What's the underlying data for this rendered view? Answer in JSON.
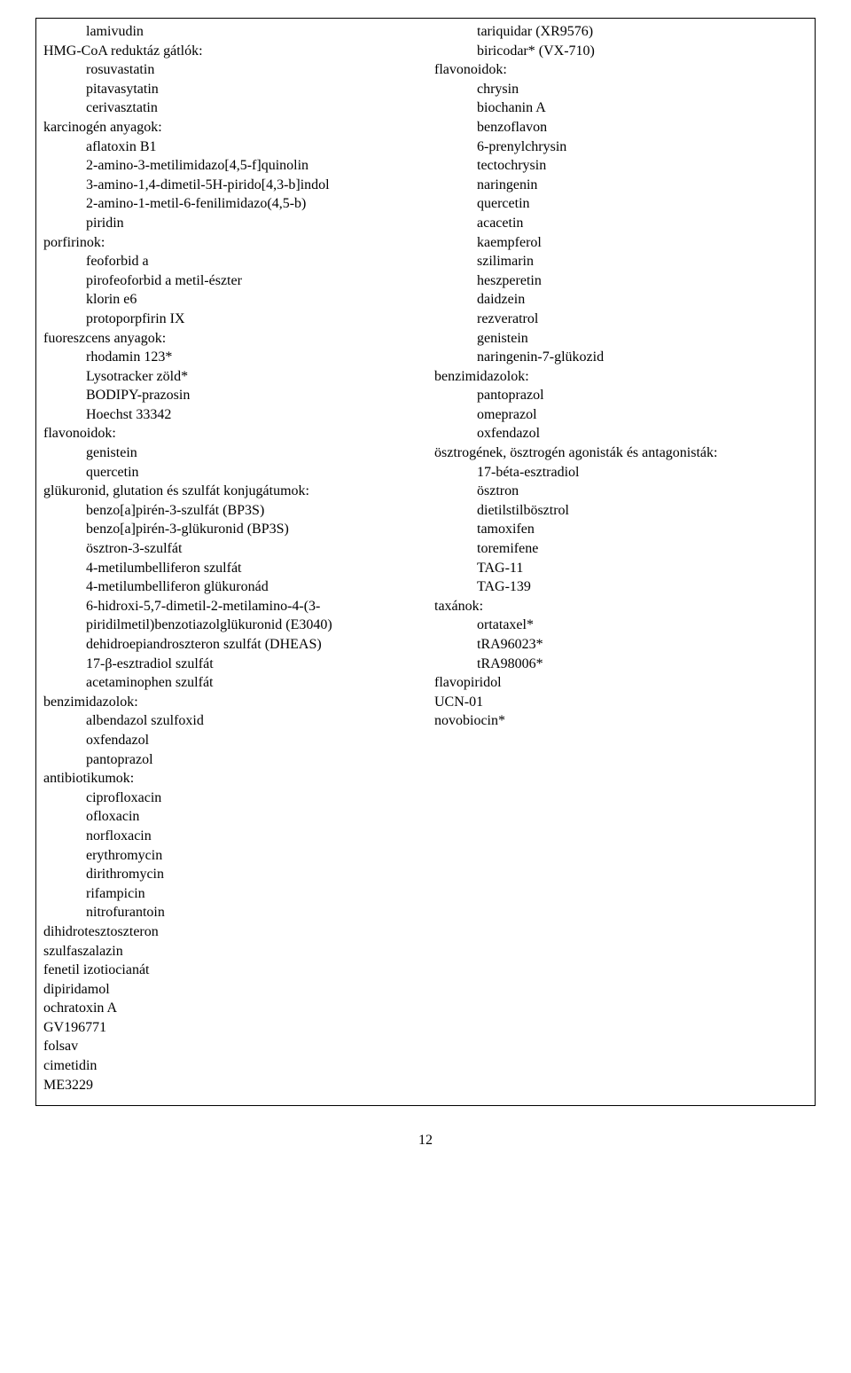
{
  "left": [
    {
      "text": "lamivudin",
      "indent": 1
    },
    {
      "text": "HMG-CoA reduktáz gátlók:",
      "indent": 0
    },
    {
      "text": "rosuvastatin",
      "indent": 1
    },
    {
      "text": "pitavasytatin",
      "indent": 1
    },
    {
      "text": "cerivasztatin",
      "indent": 1
    },
    {
      "text": "karcinogén anyagok:",
      "indent": 0
    },
    {
      "text": "aflatoxin B1",
      "indent": 1
    },
    {
      "text": "2-amino-3-metilimidazo[4,5-f]quinolin",
      "indent": 1
    },
    {
      "text": "3-amino-1,4-dimetil-5H-pirido[4,3-b]indol",
      "indent": 1
    },
    {
      "text": "2-amino-1-metil-6-fenilimidazo(4,5-b)",
      "indent": 1
    },
    {
      "text": "piridin",
      "indent": 1
    },
    {
      "text": "porfirinok:",
      "indent": 0
    },
    {
      "text": "feoforbid a",
      "indent": 1
    },
    {
      "text": "pirofeoforbid a metil-észter",
      "indent": 1
    },
    {
      "text": "klorin e6",
      "indent": 1
    },
    {
      "text": "protoporpfirin IX",
      "indent": 1
    },
    {
      "text": "fuoreszcens anyagok:",
      "indent": 0
    },
    {
      "text": "rhodamin 123*",
      "indent": 1
    },
    {
      "text": "Lysotracker zöld*",
      "indent": 1
    },
    {
      "text": "BODIPY-prazosin",
      "indent": 1
    },
    {
      "text": "Hoechst 33342",
      "indent": 1
    },
    {
      "text": "flavonoidok:",
      "indent": 0
    },
    {
      "text": "genistein",
      "indent": 1
    },
    {
      "text": "quercetin",
      "indent": 1
    },
    {
      "text": "glükuronid, glutation és szulfát konjugátumok:",
      "indent": 0
    },
    {
      "text": "benzo[a]pirén-3-szulfát (BP3S)",
      "indent": 1
    },
    {
      "text": "benzo[a]pirén-3-glükuronid (BP3S)",
      "indent": 1
    },
    {
      "text": "ösztron-3-szulfát",
      "indent": 1
    },
    {
      "text": "4-metilumbelliferon szulfát",
      "indent": 1
    },
    {
      "text": "4-metilumbelliferon glükuronád",
      "indent": 1
    },
    {
      "text": "6-hidroxi-5,7-dimetil-2-metilamino-4-(3-",
      "indent": 1
    },
    {
      "text": "piridilmetil)benzotiazolglükuronid (E3040)",
      "indent": 1
    },
    {
      "text": "dehidroepiandroszteron szulfát (DHEAS)",
      "indent": 1
    },
    {
      "text": "17-β-esztradiol szulfát",
      "indent": 1
    },
    {
      "text": "acetaminophen szulfát",
      "indent": 1
    },
    {
      "text": "benzimidazolok:",
      "indent": 0
    },
    {
      "text": "albendazol szulfoxid",
      "indent": 1
    },
    {
      "text": "oxfendazol",
      "indent": 1
    },
    {
      "text": "pantoprazol",
      "indent": 1
    },
    {
      "text": "antibiotikumok:",
      "indent": 0
    },
    {
      "text": "ciprofloxacin",
      "indent": 1
    },
    {
      "text": "ofloxacin",
      "indent": 1
    },
    {
      "text": "norfloxacin",
      "indent": 1
    },
    {
      "text": "erythromycin",
      "indent": 1
    },
    {
      "text": "dirithromycin",
      "indent": 1
    },
    {
      "text": "rifampicin",
      "indent": 1
    },
    {
      "text": "nitrofurantoin",
      "indent": 1
    },
    {
      "text": "dihidrotesztoszteron",
      "indent": 0
    },
    {
      "text": "szulfaszalazin",
      "indent": 0
    },
    {
      "text": "fenetil izotiocianát",
      "indent": 0
    },
    {
      "text": "dipiridamol",
      "indent": 0
    },
    {
      "text": "ochratoxin A",
      "indent": 0
    },
    {
      "text": "GV196771",
      "indent": 0
    },
    {
      "text": "folsav",
      "indent": 0
    },
    {
      "text": "cimetidin",
      "indent": 0
    },
    {
      "text": "ME3229",
      "indent": 0
    }
  ],
  "right": [
    {
      "text": "tariquidar (XR9576)",
      "indent": 1
    },
    {
      "text": "biricodar* (VX-710)",
      "indent": 1
    },
    {
      "text": "flavonoidok:",
      "indent": 0
    },
    {
      "text": "chrysin",
      "indent": 1
    },
    {
      "text": "biochanin A",
      "indent": 1
    },
    {
      "text": "benzoflavon",
      "indent": 1
    },
    {
      "text": "6-prenylchrysin",
      "indent": 1
    },
    {
      "text": "tectochrysin",
      "indent": 1
    },
    {
      "text": "naringenin",
      "indent": 1
    },
    {
      "text": "quercetin",
      "indent": 1
    },
    {
      "text": "acacetin",
      "indent": 1
    },
    {
      "text": "kaempferol",
      "indent": 1
    },
    {
      "text": "szilimarin",
      "indent": 1
    },
    {
      "text": "heszperetin",
      "indent": 1
    },
    {
      "text": "daidzein",
      "indent": 1
    },
    {
      "text": "rezveratrol",
      "indent": 1
    },
    {
      "text": "genistein",
      "indent": 1
    },
    {
      "text": "naringenin-7-glükozid",
      "indent": 1
    },
    {
      "text": "benzimidazolok:",
      "indent": 0
    },
    {
      "text": "pantoprazol",
      "indent": 1
    },
    {
      "text": "omeprazol",
      "indent": 1
    },
    {
      "text": "oxfendazol",
      "indent": 1
    },
    {
      "text": "ösztrogének, ösztrogén agonisták és antagonisták:",
      "indent": 0
    },
    {
      "text": "17-béta-esztradiol",
      "indent": 1
    },
    {
      "text": "ösztron",
      "indent": 1
    },
    {
      "text": "dietilstilbösztrol",
      "indent": 1
    },
    {
      "text": "tamoxifen",
      "indent": 1
    },
    {
      "text": "toremifene",
      "indent": 1
    },
    {
      "text": "TAG-11",
      "indent": 1
    },
    {
      "text": "TAG-139",
      "indent": 1
    },
    {
      "text": "taxánok:",
      "indent": 0
    },
    {
      "text": "ortataxel*",
      "indent": 1
    },
    {
      "text": "tRA96023*",
      "indent": 1
    },
    {
      "text": "tRA98006*",
      "indent": 1
    },
    {
      "text": "flavopiridol",
      "indent": 0
    },
    {
      "text": "UCN-01",
      "indent": 0
    },
    {
      "text": "novobiocin*",
      "indent": 0
    }
  ],
  "pageNumber": "12",
  "colors": {
    "text": "#000000",
    "background": "#ffffff",
    "border": "#000000"
  },
  "typography": {
    "fontFamily": "Times New Roman",
    "fontSize": 16,
    "lineHeight": 1.35
  }
}
